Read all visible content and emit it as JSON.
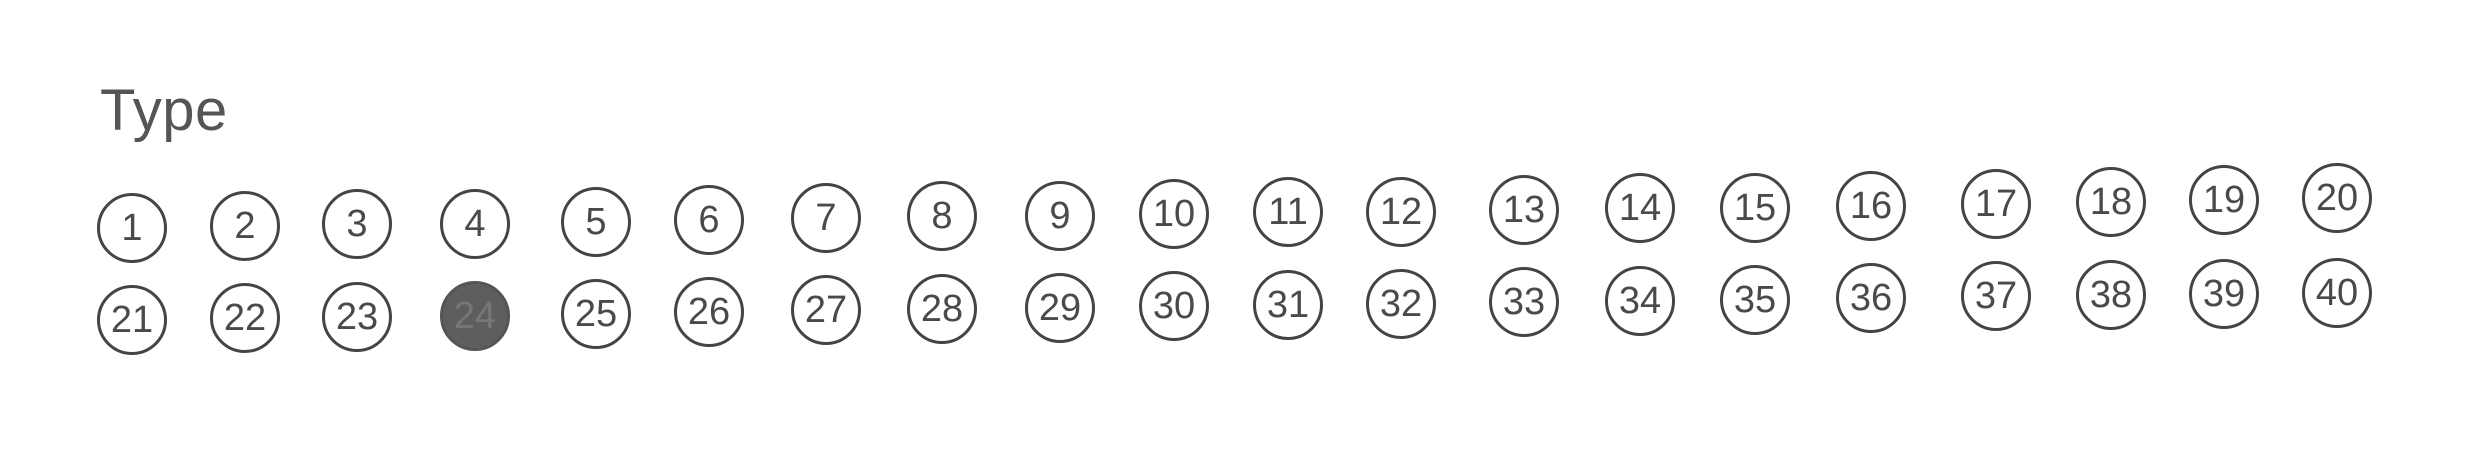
{
  "form": {
    "title": "Type"
  },
  "options": [
    {
      "label": "1",
      "filled": false
    },
    {
      "label": "2",
      "filled": false
    },
    {
      "label": "3",
      "filled": false
    },
    {
      "label": "4",
      "filled": false
    },
    {
      "label": "5",
      "filled": false
    },
    {
      "label": "6",
      "filled": false
    },
    {
      "label": "7",
      "filled": false
    },
    {
      "label": "8",
      "filled": false
    },
    {
      "label": "9",
      "filled": false
    },
    {
      "label": "10",
      "filled": false
    },
    {
      "label": "11",
      "filled": false
    },
    {
      "label": "12",
      "filled": false
    },
    {
      "label": "13",
      "filled": false
    },
    {
      "label": "14",
      "filled": false
    },
    {
      "label": "15",
      "filled": false
    },
    {
      "label": "16",
      "filled": false
    },
    {
      "label": "17",
      "filled": false
    },
    {
      "label": "18",
      "filled": false
    },
    {
      "label": "19",
      "filled": false
    },
    {
      "label": "20",
      "filled": false
    },
    {
      "label": "21",
      "filled": false
    },
    {
      "label": "22",
      "filled": false
    },
    {
      "label": "23",
      "filled": false
    },
    {
      "label": "24",
      "filled": true
    },
    {
      "label": "25",
      "filled": false
    },
    {
      "label": "26",
      "filled": false
    },
    {
      "label": "27",
      "filled": false
    },
    {
      "label": "28",
      "filled": false
    },
    {
      "label": "29",
      "filled": false
    },
    {
      "label": "30",
      "filled": false
    },
    {
      "label": "31",
      "filled": false
    },
    {
      "label": "32",
      "filled": false
    },
    {
      "label": "33",
      "filled": false
    },
    {
      "label": "34",
      "filled": false
    },
    {
      "label": "35",
      "filled": false
    },
    {
      "label": "36",
      "filled": false
    },
    {
      "label": "37",
      "filled": false
    },
    {
      "label": "38",
      "filled": false
    },
    {
      "label": "39",
      "filled": false
    },
    {
      "label": "40",
      "filled": false
    }
  ]
}
